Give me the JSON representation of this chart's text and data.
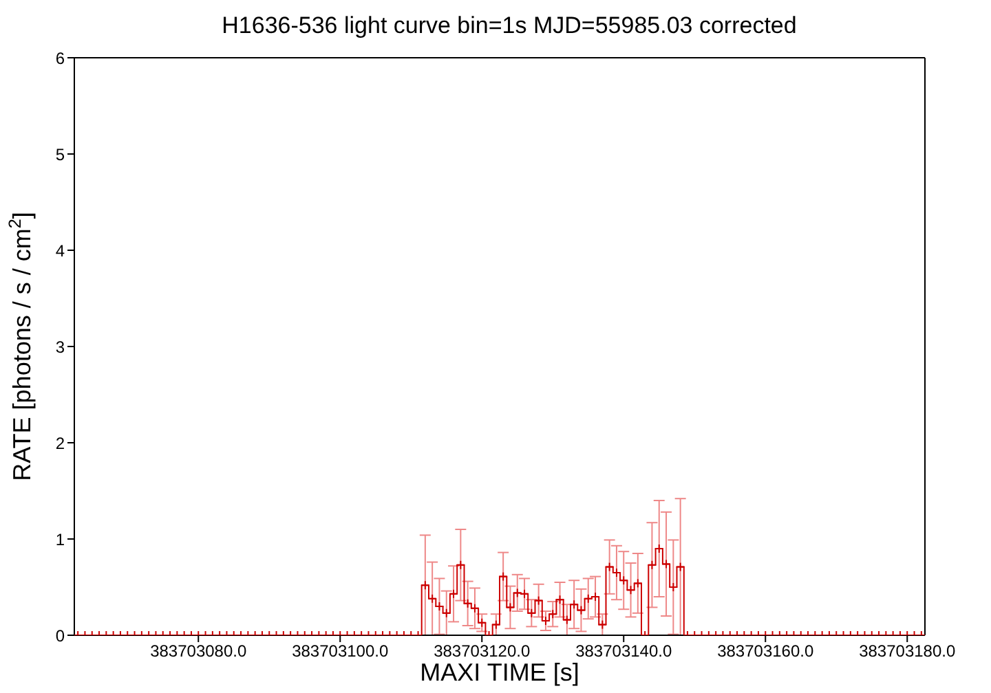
{
  "chart_data": {
    "type": "step",
    "title": "H1636-536 light curve bin=1s MJD=55985.03 corrected",
    "xlabel": "MAXI TIME [s]",
    "ylabel": "RATE [photons / s / cm$^{2}$]",
    "x": [
      383703063,
      383703064,
      383703065,
      383703066,
      383703067,
      383703068,
      383703069,
      383703070,
      383703071,
      383703072,
      383703073,
      383703074,
      383703075,
      383703076,
      383703077,
      383703078,
      383703079,
      383703080,
      383703081,
      383703082,
      383703083,
      383703084,
      383703085,
      383703086,
      383703087,
      383703088,
      383703089,
      383703090,
      383703091,
      383703092,
      383703093,
      383703094,
      383703095,
      383703096,
      383703097,
      383703098,
      383703099,
      383703100,
      383703101,
      383703102,
      383703103,
      383703104,
      383703105,
      383703106,
      383703107,
      383703108,
      383703109,
      383703110,
      383703111,
      383703112,
      383703113,
      383703114,
      383703115,
      383703116,
      383703117,
      383703118,
      383703119,
      383703120,
      383703121,
      383703122,
      383703123,
      383703124,
      383703125,
      383703126,
      383703127,
      383703128,
      383703129,
      383703130,
      383703131,
      383703132,
      383703133,
      383703134,
      383703135,
      383703136,
      383703137,
      383703138,
      383703139,
      383703140,
      383703141,
      383703142,
      383703143,
      383703144,
      383703145,
      383703146,
      383703147,
      383703148,
      383703149,
      383703150,
      383703151,
      383703152,
      383703153,
      383703154,
      383703155,
      383703156,
      383703157,
      383703158,
      383703159,
      383703160,
      383703161,
      383703162,
      383703163,
      383703164,
      383703165,
      383703166,
      383703167,
      383703168,
      383703169,
      383703170,
      383703171,
      383703172,
      383703173,
      383703174,
      383703175,
      383703176,
      383703177,
      383703178,
      383703179,
      383703180,
      383703181,
      383703182
    ],
    "series": [
      {
        "color": "#cc0000",
        "marker": "cross",
        "values": [
          0,
          0,
          0,
          0,
          0,
          0,
          0,
          0,
          0,
          0,
          0,
          0,
          0,
          0,
          0,
          0,
          0,
          0,
          0,
          0,
          0,
          0,
          0,
          0,
          0,
          0,
          0,
          0,
          0,
          0,
          0,
          0,
          0,
          0,
          0,
          0,
          0,
          0,
          0,
          0,
          0,
          0,
          0,
          0,
          0,
          0,
          0,
          0,
          0,
          0.52,
          0.38,
          0.3,
          0.23,
          0.43,
          0.73,
          0.33,
          0.28,
          0.13,
          0,
          0.11,
          0.61,
          0.29,
          0.44,
          0.43,
          0.23,
          0.36,
          0.15,
          0.22,
          0.37,
          0.16,
          0.32,
          0.26,
          0.38,
          0.4,
          0.11,
          0.71,
          0.65,
          0.57,
          0.47,
          0.54,
          0,
          0.73,
          0.9,
          0.74,
          0.5,
          0.71,
          0,
          0,
          0,
          0,
          0,
          0,
          0,
          0,
          0,
          0,
          0,
          0,
          0,
          0,
          0,
          0,
          0,
          0,
          0,
          0,
          0,
          0,
          0,
          0,
          0,
          0,
          0,
          0,
          0,
          0,
          0,
          0,
          0,
          0
        ],
        "errors": [
          0,
          0,
          0,
          0,
          0,
          0,
          0,
          0,
          0,
          0,
          0,
          0,
          0,
          0,
          0,
          0,
          0,
          0,
          0,
          0,
          0,
          0,
          0,
          0,
          0,
          0,
          0,
          0,
          0,
          0,
          0,
          0,
          0,
          0,
          0,
          0,
          0,
          0,
          0,
          0,
          0,
          0,
          0,
          0,
          0,
          0,
          0,
          0,
          0,
          0.52,
          0.38,
          0.29,
          0.23,
          0.29,
          0.37,
          0.23,
          0.21,
          0.09,
          0,
          0.11,
          0.25,
          0.22,
          0.19,
          0.16,
          0.14,
          0.17,
          0.1,
          0.13,
          0.18,
          0.16,
          0.25,
          0.22,
          0.21,
          0.21,
          0.11,
          0.28,
          0.28,
          0.3,
          0.28,
          0.31,
          0,
          0.44,
          0.5,
          0.54,
          0.49,
          0.71,
          0,
          0,
          0,
          0,
          0,
          0,
          0,
          0,
          0,
          0,
          0,
          0,
          0,
          0,
          0,
          0,
          0,
          0,
          0,
          0,
          0,
          0,
          0,
          0,
          0,
          0,
          0,
          0,
          0,
          0,
          0,
          0,
          0,
          0
        ]
      }
    ],
    "xlim": [
      383703062.5,
      383703182.5
    ],
    "xticks": [
      {
        "value": 383703080,
        "label": "383703080.0"
      },
      {
        "value": 383703100,
        "label": "383703100.0"
      },
      {
        "value": 383703120,
        "label": "383703120.0"
      },
      {
        "value": 383703140,
        "label": "383703140.0"
      },
      {
        "value": 383703160,
        "label": "383703160.0"
      },
      {
        "value": 383703180,
        "label": "383703180.0"
      }
    ],
    "ylim": [
      0,
      6
    ],
    "yticks": [
      0,
      1,
      2,
      3,
      4,
      5,
      6
    ]
  }
}
